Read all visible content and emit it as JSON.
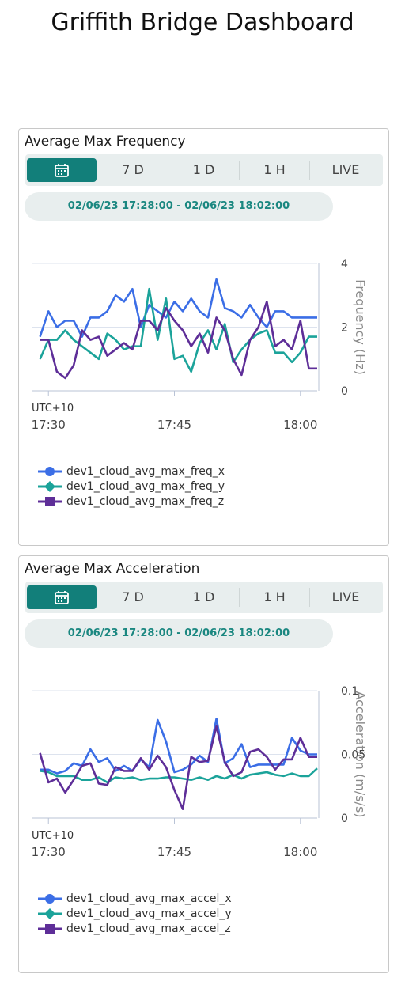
{
  "page": {
    "title": "Griffith Bridge Dashboard"
  },
  "cards": [
    {
      "title": "Average Max Frequency",
      "tabs": [
        {
          "label": "",
          "icon": "calendar-icon",
          "active": true
        },
        {
          "label": "7 D"
        },
        {
          "label": "1 D"
        },
        {
          "label": "1 H"
        },
        {
          "label": "LIVE"
        }
      ],
      "range_label": "02/06/23 17:28:00 - 02/06/23 18:02:00"
    },
    {
      "title": "Average Max Acceleration",
      "tabs": [
        {
          "label": "",
          "icon": "calendar-icon",
          "active": true
        },
        {
          "label": "7 D"
        },
        {
          "label": "1 D"
        },
        {
          "label": "1 H"
        },
        {
          "label": "LIVE"
        }
      ],
      "range_label": "02/06/23 17:28:00 - 02/06/23 18:02:00"
    }
  ],
  "chart_data": [
    {
      "type": "line",
      "title": "",
      "xlabel": "",
      "ylabel": "Frequency (Hz)",
      "ylim": [
        0,
        4
      ],
      "yticks": [
        "4",
        "2",
        "0"
      ],
      "xlim": [
        "17:28",
        "18:02"
      ],
      "timezone_label": "UTC+10",
      "xticks": [
        "17:30",
        "17:45",
        "18:00"
      ],
      "grid": "horizontal",
      "legend_position": "bottom-left",
      "x": [
        "17:29",
        "17:30",
        "17:31",
        "17:32",
        "17:33",
        "17:34",
        "17:35",
        "17:36",
        "17:37",
        "17:38",
        "17:39",
        "17:40",
        "17:41",
        "17:42",
        "17:43",
        "17:44",
        "17:45",
        "17:46",
        "17:47",
        "17:48",
        "17:49",
        "17:50",
        "17:51",
        "17:52",
        "17:53",
        "17:54",
        "17:55",
        "17:56",
        "17:57",
        "17:58",
        "17:59",
        "18:00",
        "18:01",
        "18:02"
      ],
      "series": [
        {
          "name": "dev1_cloud_avg_max_freq_x",
          "color": "#3b6ee6",
          "marker": "circle",
          "values": [
            1.7,
            2.5,
            2.0,
            2.2,
            2.2,
            1.7,
            2.3,
            2.3,
            2.5,
            3.0,
            2.8,
            3.2,
            2.0,
            2.7,
            2.5,
            2.3,
            2.8,
            2.5,
            2.9,
            2.5,
            2.3,
            3.5,
            2.6,
            2.5,
            2.3,
            2.7,
            2.3,
            2.0,
            2.5,
            2.5,
            2.3,
            2.3,
            2.3,
            2.3
          ]
        },
        {
          "name": "dev1_cloud_avg_max_freq_y",
          "color": "#1ba39a",
          "marker": "diamond",
          "values": [
            1.0,
            1.6,
            1.6,
            1.9,
            1.6,
            1.4,
            1.2,
            1.0,
            1.8,
            1.6,
            1.3,
            1.4,
            1.4,
            3.2,
            1.6,
            2.9,
            1.0,
            1.1,
            0.6,
            1.5,
            1.9,
            1.3,
            2.1,
            0.9,
            1.3,
            1.6,
            1.8,
            1.9,
            1.2,
            1.2,
            0.9,
            1.2,
            1.7,
            1.7
          ]
        },
        {
          "name": "dev1_cloud_avg_max_freq_z",
          "color": "#5e2e98",
          "marker": "square",
          "values": [
            1.6,
            1.6,
            0.6,
            0.4,
            0.8,
            1.9,
            1.6,
            1.7,
            1.1,
            1.3,
            1.5,
            1.3,
            2.2,
            2.2,
            1.9,
            2.6,
            2.2,
            1.9,
            1.4,
            1.8,
            1.2,
            2.3,
            1.9,
            1.0,
            0.5,
            1.6,
            2.0,
            2.8,
            1.4,
            1.6,
            1.3,
            2.2,
            0.7,
            0.7
          ]
        }
      ]
    },
    {
      "type": "line",
      "title": "",
      "xlabel": "",
      "ylabel": "Acceleration (m/s/s)",
      "ylim": [
        0,
        0.1
      ],
      "yticks": [
        "0.1",
        "0.05",
        "0"
      ],
      "xlim": [
        "17:28",
        "18:02"
      ],
      "timezone_label": "UTC+10",
      "xticks": [
        "17:30",
        "17:45",
        "18:00"
      ],
      "grid": "horizontal",
      "legend_position": "bottom-left",
      "x": [
        "17:29",
        "17:30",
        "17:31",
        "17:32",
        "17:33",
        "17:34",
        "17:35",
        "17:36",
        "17:37",
        "17:38",
        "17:39",
        "17:40",
        "17:41",
        "17:42",
        "17:43",
        "17:44",
        "17:45",
        "17:46",
        "17:47",
        "17:48",
        "17:49",
        "17:50",
        "17:51",
        "17:52",
        "17:53",
        "17:54",
        "17:55",
        "17:56",
        "17:57",
        "17:58",
        "17:59",
        "18:00",
        "18:01",
        "18:02"
      ],
      "series": [
        {
          "name": "dev1_cloud_avg_max_accel_x",
          "color": "#3b6ee6",
          "marker": "circle",
          "values": [
            0.038,
            0.038,
            0.035,
            0.037,
            0.043,
            0.041,
            0.054,
            0.044,
            0.047,
            0.037,
            0.041,
            0.037,
            0.046,
            0.04,
            0.077,
            0.06,
            0.036,
            0.038,
            0.042,
            0.049,
            0.044,
            0.078,
            0.043,
            0.047,
            0.058,
            0.04,
            0.042,
            0.042,
            0.042,
            0.042,
            0.063,
            0.053,
            0.05,
            0.05
          ]
        },
        {
          "name": "dev1_cloud_avg_max_accel_y",
          "color": "#1ba39a",
          "marker": "diamond",
          "values": [
            0.037,
            0.036,
            0.033,
            0.033,
            0.033,
            0.03,
            0.03,
            0.032,
            0.028,
            0.032,
            0.031,
            0.032,
            0.03,
            0.031,
            0.031,
            0.032,
            0.032,
            0.031,
            0.03,
            0.032,
            0.03,
            0.033,
            0.031,
            0.034,
            0.031,
            0.034,
            0.035,
            0.036,
            0.034,
            0.033,
            0.035,
            0.033,
            0.033,
            0.039
          ]
        },
        {
          "name": "dev1_cloud_avg_max_accel_z",
          "color": "#5e2e98",
          "marker": "square",
          "values": [
            0.051,
            0.028,
            0.031,
            0.02,
            0.03,
            0.041,
            0.043,
            0.027,
            0.026,
            0.04,
            0.037,
            0.037,
            0.047,
            0.038,
            0.049,
            0.04,
            0.022,
            0.007,
            0.048,
            0.044,
            0.045,
            0.072,
            0.044,
            0.033,
            0.036,
            0.052,
            0.054,
            0.048,
            0.038,
            0.046,
            0.046,
            0.063,
            0.048,
            0.048
          ]
        }
      ]
    }
  ]
}
